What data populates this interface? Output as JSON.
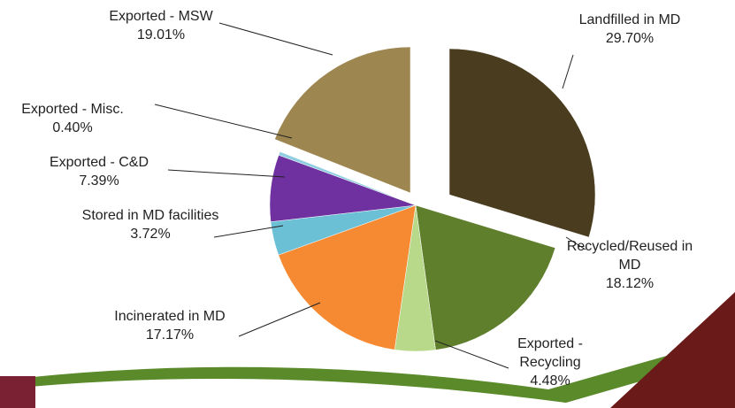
{
  "chart_data": {
    "type": "pie",
    "categories": [
      "Landfilled in MD",
      "Recycled/Reused in MD",
      "Exported - Recycling",
      "Incinerated in MD",
      "Stored in MD facilities",
      "Exported - C&D",
      "Exported - Misc.",
      "Exported - MSW"
    ],
    "values": [
      29.7,
      18.12,
      4.48,
      17.17,
      3.72,
      7.39,
      0.4,
      19.01
    ],
    "value_labels": [
      "29.70%",
      "18.12%",
      "4.48%",
      "17.17%",
      "3.72%",
      "7.39%",
      "0.40%",
      "19.01%"
    ],
    "colors": [
      "#4a3c1f",
      "#5f7f2c",
      "#b9d98a",
      "#f58a33",
      "#6cc0d6",
      "#7031a0",
      "#8fcde0",
      "#9e8650"
    ]
  }
}
